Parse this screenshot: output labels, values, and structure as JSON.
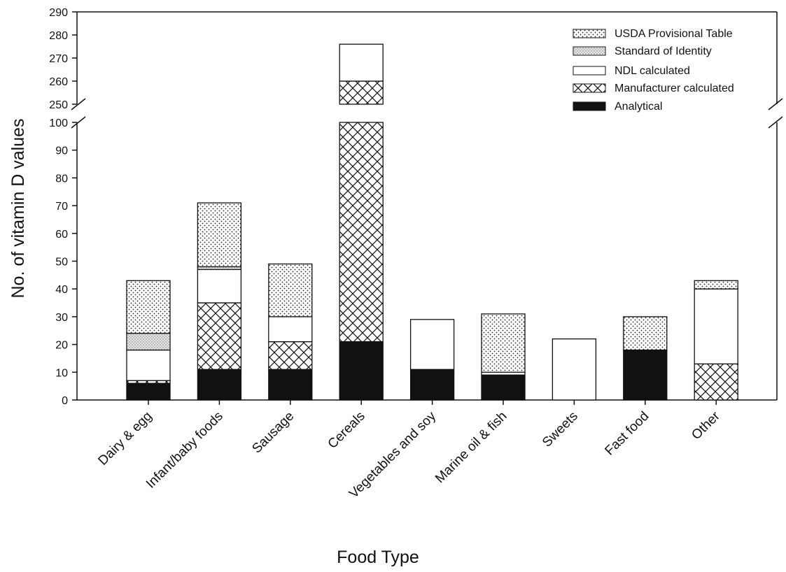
{
  "chart_data": {
    "type": "bar",
    "stacked": true,
    "title": "",
    "xlabel": "Food Type",
    "ylabel": "No. of vitamin D values",
    "categories": [
      "Dairy & egg",
      "Infant/baby foods",
      "Sausage",
      "Cereals",
      "Vegetables and soy",
      "Marine oil & fish",
      "Sweets",
      "Fast food",
      "Other"
    ],
    "series": [
      {
        "name": "Analytical",
        "pattern": "solid-black",
        "values": [
          6,
          11,
          11,
          21,
          11,
          9,
          0,
          18,
          0
        ]
      },
      {
        "name": "Manufacturer calculated",
        "pattern": "crosshatch",
        "values": [
          1,
          24,
          10,
          239,
          0,
          0,
          0,
          0,
          13
        ]
      },
      {
        "name": "NDL calculated",
        "pattern": "white",
        "values": [
          11,
          12,
          9,
          16,
          18,
          1,
          22,
          0,
          27
        ]
      },
      {
        "name": "Standard of Identity",
        "pattern": "fine-dots",
        "values": [
          6,
          1,
          0,
          0,
          0,
          0,
          0,
          0,
          0
        ]
      },
      {
        "name": "USDA Provisional Table",
        "pattern": "dots",
        "values": [
          19,
          23,
          19,
          0,
          0,
          21,
          0,
          12,
          3
        ]
      }
    ],
    "legend_order": [
      "USDA Provisional Table",
      "Standard of Identity",
      "NDL calculated",
      "Manufacturer calculated",
      "Analytical"
    ],
    "legend_position": "top-right",
    "y_axis_break": {
      "from": 100,
      "to": 250
    },
    "ylim_lower": [
      0,
      100
    ],
    "ylim_upper": [
      250,
      290
    ],
    "yticks_lower": [
      "0",
      "10",
      "20",
      "30",
      "40",
      "50",
      "60",
      "70",
      "80",
      "90",
      "100"
    ],
    "yticks_upper": [
      "250",
      "260",
      "270",
      "280",
      "290"
    ],
    "grid": false
  }
}
